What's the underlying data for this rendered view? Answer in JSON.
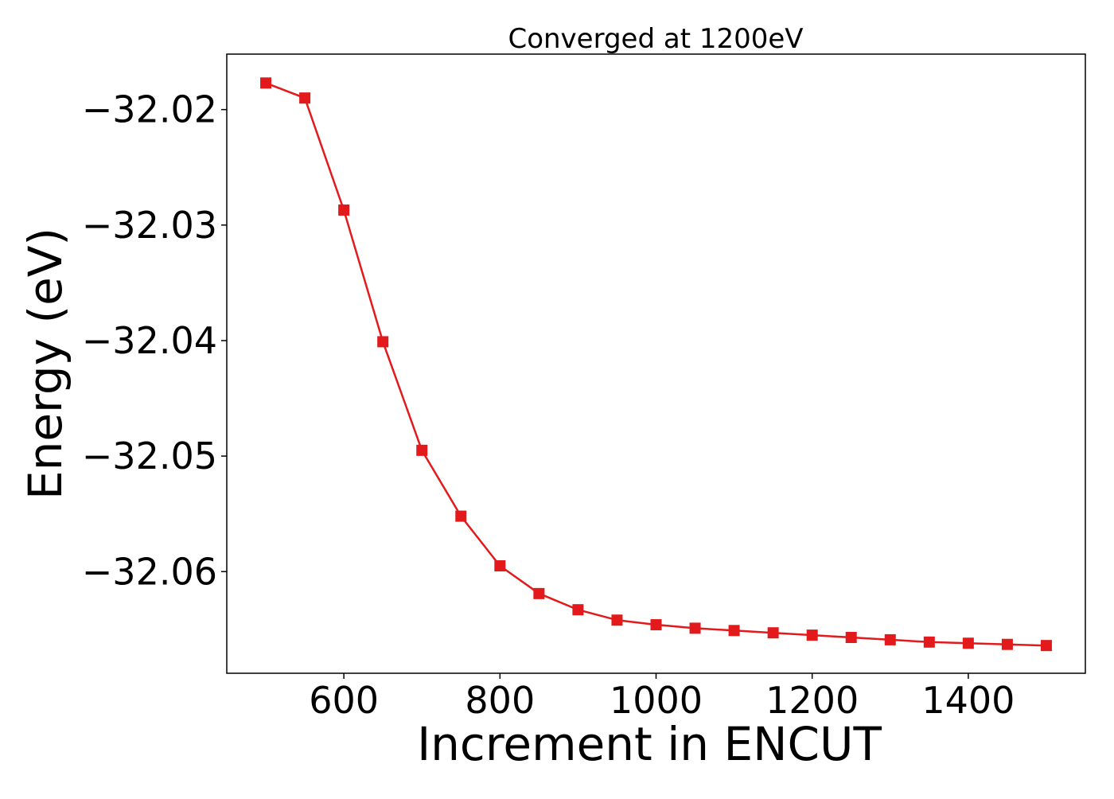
{
  "chart_data": {
    "type": "line",
    "title": "Converged at 1200eV",
    "xlabel": "Increment in ENCUT",
    "ylabel": "Energy (eV)",
    "xlim": [
      450,
      1550
    ],
    "ylim": [
      -32.0688,
      -32.0152
    ],
    "xticks": [
      600,
      800,
      1000,
      1200,
      1400
    ],
    "xtick_labels": [
      "600",
      "800",
      "1000",
      "1200",
      "1400"
    ],
    "yticks": [
      -32.02,
      -32.03,
      -32.04,
      -32.05,
      -32.06
    ],
    "ytick_labels": [
      "−32.02",
      "−32.03",
      "−32.04",
      "−32.05",
      "−32.06"
    ],
    "grid": false,
    "legend": false,
    "series": [
      {
        "color": "#e31a1c",
        "marker": "square",
        "x": [
          500,
          550,
          600,
          650,
          700,
          750,
          800,
          850,
          900,
          950,
          1000,
          1050,
          1100,
          1150,
          1200,
          1250,
          1300,
          1350,
          1400,
          1450,
          1500
        ],
        "y": [
          -32.0177,
          -32.019,
          -32.0287,
          -32.0401,
          -32.0495,
          -32.0552,
          -32.0595,
          -32.0619,
          -32.0633,
          -32.0642,
          -32.0646,
          -32.0649,
          -32.0651,
          -32.0653,
          -32.0655,
          -32.0657,
          -32.0659,
          -32.0661,
          -32.0662,
          -32.0663,
          -32.0664
        ]
      }
    ]
  }
}
